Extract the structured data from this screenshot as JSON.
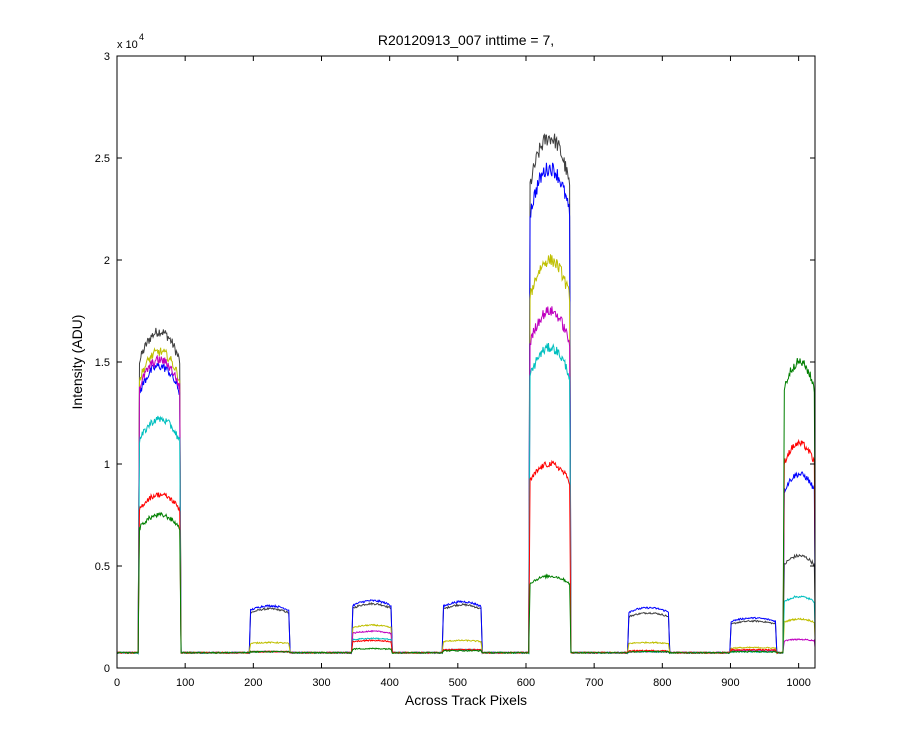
{
  "chart_data": {
    "type": "line",
    "title": "R20120913_007 inttime = 7,",
    "xlabel": "Across Track Pixels",
    "ylabel": "Intensity (ADU)",
    "xlim": [
      0,
      1024
    ],
    "ylim": [
      0,
      30000
    ],
    "y_exponent_label": "x 10",
    "y_exponent_power": "4",
    "x_ticks": [
      0,
      100,
      200,
      300,
      400,
      500,
      600,
      700,
      800,
      900,
      1000
    ],
    "x_tick_labels": [
      "0",
      "100",
      "200",
      "300",
      "400",
      "500",
      "600",
      "700",
      "800",
      "900",
      "1000"
    ],
    "y_ticks": [
      0,
      5000,
      10000,
      15000,
      20000,
      25000,
      30000
    ],
    "y_tick_labels": [
      "0",
      "0.5",
      "1",
      "1.5",
      "2",
      "2.5",
      "3"
    ],
    "grid": false,
    "legend": "none",
    "baseline": 750,
    "segments": [
      {
        "start": 32,
        "end": 93
      },
      {
        "start": 195,
        "end": 253
      },
      {
        "start": 345,
        "end": 403
      },
      {
        "start": 478,
        "end": 535
      },
      {
        "start": 605,
        "end": 665
      },
      {
        "start": 750,
        "end": 810
      },
      {
        "start": 900,
        "end": 967
      },
      {
        "start": 978,
        "end": 1024
      }
    ],
    "series": [
      {
        "color": "#3f3f3f",
        "levels": [
          16500,
          2900,
          3150,
          3100,
          26000,
          2700,
          2300,
          5500
        ]
      },
      {
        "color": "#0000ff",
        "levels": [
          14800,
          3050,
          3300,
          3250,
          24500,
          2950,
          2450,
          9500
        ]
      },
      {
        "color": "#bfbf00",
        "levels": [
          15500,
          1250,
          2100,
          1350,
          20000,
          1250,
          1000,
          2400
        ]
      },
      {
        "color": "#bf00bf",
        "levels": [
          15100,
          800,
          1800,
          900,
          17500,
          800,
          850,
          1400
        ]
      },
      {
        "color": "#00bfbf",
        "levels": [
          12200,
          800,
          1450,
          900,
          15700,
          800,
          800,
          3500
        ]
      },
      {
        "color": "#ff0000",
        "levels": [
          8500,
          800,
          1350,
          900,
          10000,
          850,
          900,
          11000
        ]
      },
      {
        "color": "#007f00",
        "levels": [
          7500,
          800,
          950,
          850,
          4500,
          800,
          800,
          15000
        ]
      }
    ]
  }
}
